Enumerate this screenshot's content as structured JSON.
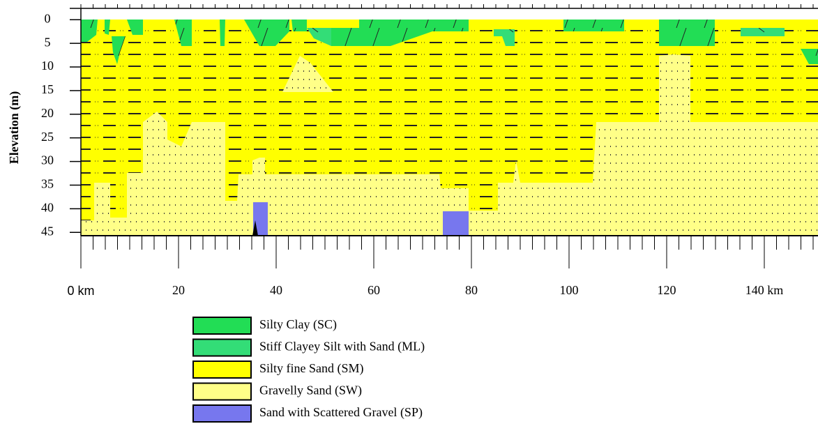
{
  "chart_data": {
    "type": "cross-section",
    "ylabel": "Elevation (m)",
    "ylim": [
      -2.4,
      45.7
    ],
    "yticks": [
      0,
      5,
      10,
      15,
      20,
      25,
      30,
      35,
      40,
      45
    ],
    "xlim": [
      0,
      151
    ],
    "xticks": [
      {
        "value": 0,
        "label": "0 km"
      },
      20,
      40,
      60,
      80,
      100,
      120,
      {
        "value": 140,
        "label": "140 km"
      }
    ],
    "legend": [
      {
        "name": "Silty Clay (SC)",
        "color": "#22dd55"
      },
      {
        "name": "Stiff Clayey Silt with Sand (ML)",
        "color": "#33dd77"
      },
      {
        "name": "Silty fine Sand (SM)",
        "color": "#ffff00"
      },
      {
        "name": "Gravelly Sand (SW)",
        "color": "#ffff88"
      },
      {
        "name": "Sand with Scattered Gravel (SP)",
        "color": "#7777ee"
      }
    ]
  }
}
